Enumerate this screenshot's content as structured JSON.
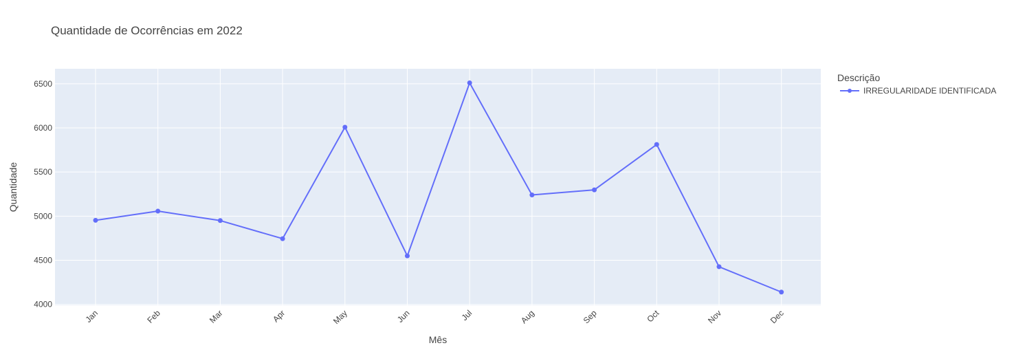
{
  "chart_data": {
    "type": "line",
    "title": "Quantidade de Ocorrências em 2022",
    "xlabel": "Mês",
    "ylabel": "Quantidade",
    "categories": [
      "Jan",
      "Feb",
      "Mar",
      "Apr",
      "May",
      "Jun",
      "Jul",
      "Aug",
      "Sep",
      "Oct",
      "Nov",
      "Dec"
    ],
    "ylim": [
      3990,
      6670
    ],
    "yticks": [
      4000,
      4500,
      5000,
      5500,
      6000,
      6500
    ],
    "grid": true,
    "legend": {
      "title": "Descrição",
      "placement": "top-right"
    },
    "series": [
      {
        "name": "IRREGULARIDADE IDENTIFICADA",
        "color": "#636efa",
        "values": [
          4953,
          5057,
          4950,
          4745,
          6008,
          4550,
          6510,
          5240,
          5298,
          5812,
          4427,
          4140
        ]
      }
    ],
    "colors": {
      "plot_background": "#e5ecf6",
      "grid": "#ffffff",
      "text": "#444444"
    }
  }
}
